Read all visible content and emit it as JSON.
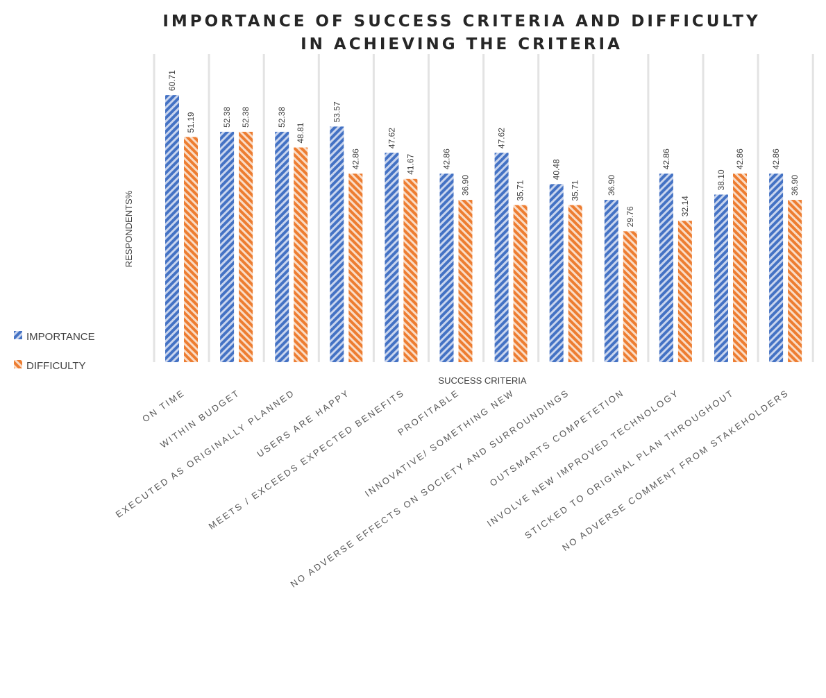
{
  "chart_data": {
    "type": "bar",
    "title": [
      "IMPORTANCE OF SUCCESS CRITERIA AND DIFFICULTY",
      "IN ACHIEVING THE CRITERIA"
    ],
    "xlabel": "SUCCESS CRITERIA",
    "ylabel": "RESPONDENTS%",
    "ylim": [
      0,
      71
    ],
    "grid": "vertical category separators",
    "legend_position": "left",
    "categories": [
      "ON TIME",
      "WITHIN BUDGET",
      "EXECUTED AS ORIGINALLY PLANNED",
      "USERS ARE HAPPY",
      "MEETS / EXCEEDS EXPECTED BENEFITS",
      "PROFITABLE",
      "INNOVATIVE/ SOMETHING NEW",
      "NO ADVERSE EFFECTS ON SOCIETY AND SURROUNDINGS",
      "OUTSMARTS COMPETETION",
      "INVOLVE NEW IMPROVED TECHNOLOGY",
      "STICKED TO ORIGINAL PLAN THROUGHOUT",
      "NO ADVERSE COMMENT FROM STAKEHOLDERS"
    ],
    "series": [
      {
        "name": "IMPORTANCE",
        "color": "#4472c4",
        "pattern": "diagonal-stripes",
        "values": [
          60.71,
          52.38,
          52.38,
          53.57,
          47.62,
          42.86,
          47.62,
          40.48,
          36.9,
          42.86,
          38.1,
          42.86
        ],
        "labels": [
          "60.71",
          "52.38",
          "52.38",
          "53.57",
          "47.62",
          "42.86",
          "47.62",
          "40.48",
          "36.90",
          "42.86",
          "38.10",
          "42.86"
        ]
      },
      {
        "name": "DIFFICULTY",
        "color": "#ed7d31",
        "pattern": "diagonal-stripes",
        "values": [
          51.19,
          52.38,
          48.81,
          42.86,
          41.67,
          36.9,
          35.71,
          35.71,
          29.76,
          32.14,
          42.86,
          36.9
        ],
        "labels": [
          "51.19",
          "52.38",
          "48.81",
          "42.86",
          "41.67",
          "36.90",
          "35.71",
          "35.71",
          "29.76",
          "32.14",
          "42.86",
          "36.90"
        ]
      }
    ]
  }
}
